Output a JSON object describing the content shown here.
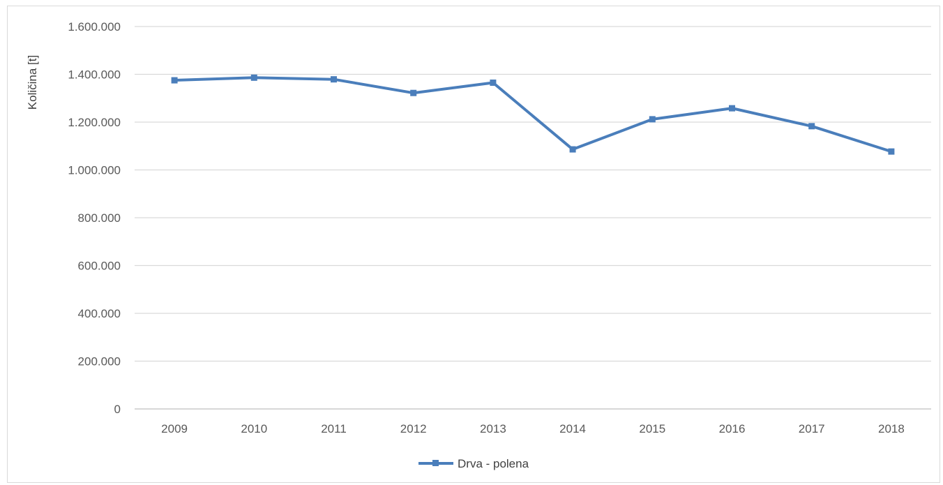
{
  "chart_data": {
    "type": "line",
    "title": "",
    "xlabel": "",
    "ylabel": "Količina [t]",
    "categories": [
      "2009",
      "2010",
      "2011",
      "2012",
      "2013",
      "2014",
      "2015",
      "2016",
      "2017",
      "2018"
    ],
    "series": [
      {
        "name": "Drva - polena",
        "color": "#4a7ebb",
        "marker": "square",
        "values": [
          1375000,
          1386000,
          1379000,
          1322000,
          1365000,
          1086000,
          1212000,
          1258000,
          1183000,
          1077000
        ]
      }
    ],
    "ylim": [
      0,
      1600000
    ],
    "yticks": [
      0,
      200000,
      400000,
      600000,
      800000,
      1000000,
      1200000,
      1400000,
      1600000
    ],
    "ytick_labels": [
      "0",
      "200.000",
      "400.000",
      "600.000",
      "800.000",
      "1.000.000",
      "1.200.000",
      "1.400.000",
      "1.600.000"
    ],
    "grid": true,
    "legend": "bottom-center"
  }
}
